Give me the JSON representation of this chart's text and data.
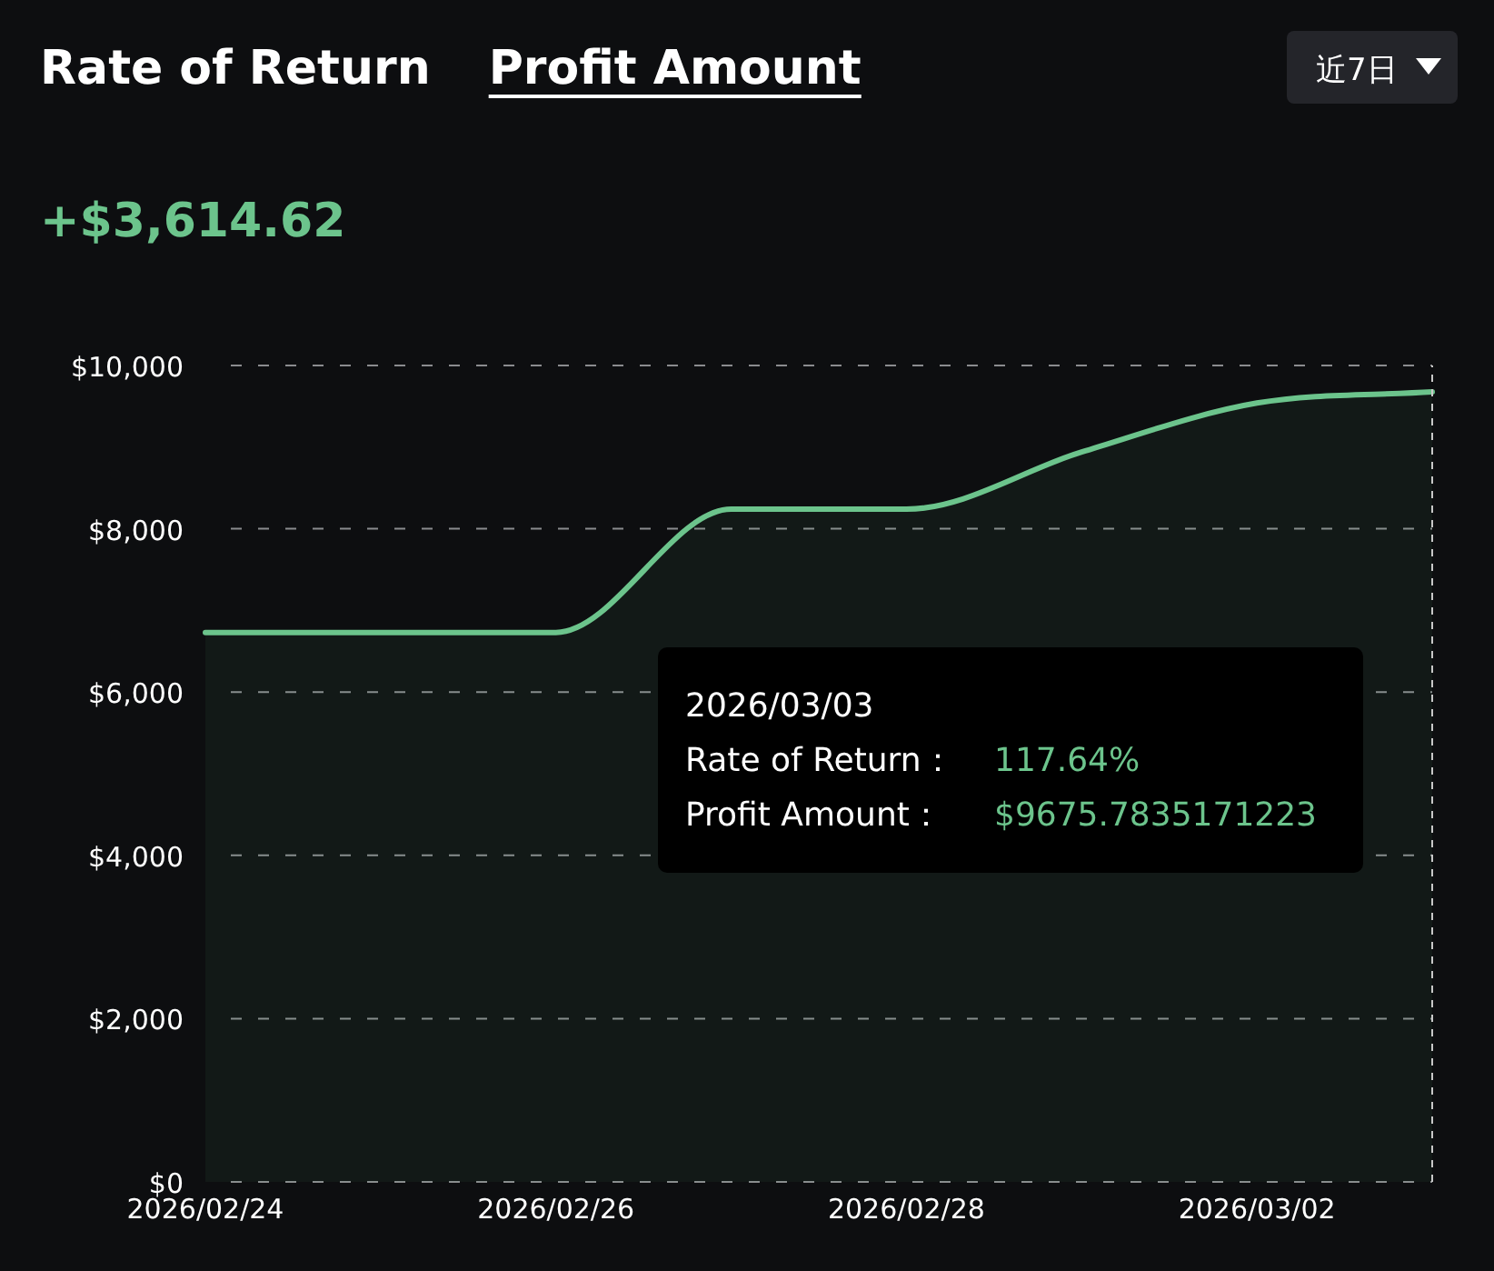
{
  "chart_data": {
    "type": "area",
    "title": "Profit Amount",
    "subtitle": "+$3,614.62",
    "annotations": [
      "Rate of Return",
      "近7日",
      "2026/03/03",
      "Rate of Return：",
      "117.64%",
      "Profit Amount：",
      "$9675.7835171223"
    ],
    "x": [
      "2026-02-24",
      "2026-02-25",
      "2026-02-26",
      "2026-02-27",
      "2026-02-28",
      "2026-03-01",
      "2026-03-02",
      "2026-03-03"
    ],
    "values": [
      6730,
      6730,
      6730,
      8240,
      8240,
      8940,
      9540,
      9675.78
    ],
    "color": "#6cc48c",
    "xlim": [
      "2026-02-24",
      "2026-03-03"
    ],
    "xticks": [
      {
        "value": "2026-02-24",
        "label": "2026/02/24"
      },
      {
        "value": "2026-02-26",
        "label": "2026/02/26"
      },
      {
        "value": "2026-02-28",
        "label": "2026/02/28"
      },
      {
        "value": "2026-03-02",
        "label": "2026/03/02"
      }
    ],
    "ylim": [
      0,
      10000
    ],
    "yticks": [
      {
        "value": 0,
        "label": "$0"
      },
      {
        "value": 2000,
        "label": "$2,000"
      },
      {
        "value": 4000,
        "label": "$4,000"
      },
      {
        "value": 6000,
        "label": "$6,000"
      },
      {
        "value": 8000,
        "label": "$8,000"
      },
      {
        "value": 10000,
        "label": "$10,000"
      }
    ],
    "grid": "y",
    "ref_lines": [
      {
        "axis": "x",
        "value": "2026-03-03"
      }
    ]
  }
}
